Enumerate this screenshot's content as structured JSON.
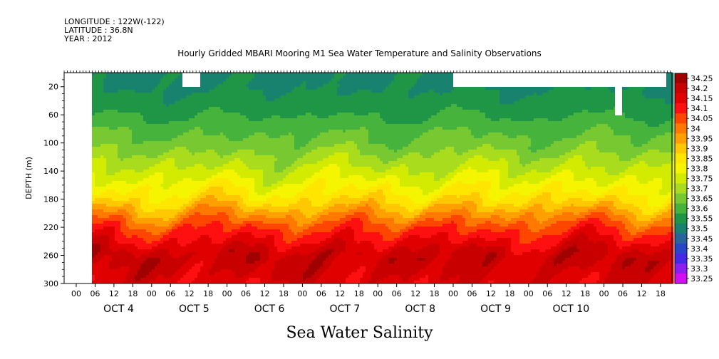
{
  "header": {
    "longitude": "LONGITUDE : 122W(-122)",
    "latitude": "LATITUDE : 36.8N",
    "year": "YEAR : 2012"
  },
  "chart_data": {
    "type": "heatmap",
    "title": "Hourly Gridded MBARI Mooring M1 Sea Water Temperature and Salinity Observations",
    "xlabel": "Sea Water Salinity",
    "ylabel": "DEPTH (m)",
    "ylim": [
      300,
      0
    ],
    "y_ticks": [
      20,
      60,
      100,
      140,
      180,
      220,
      260,
      300
    ],
    "x_hour_ticks": [
      "00",
      "06",
      "12",
      "18",
      "00",
      "06",
      "12",
      "18",
      "00",
      "06",
      "12",
      "18",
      "00",
      "06",
      "12",
      "18",
      "00",
      "06",
      "12",
      "18",
      "00",
      "06",
      "12",
      "18",
      "00",
      "06",
      "12",
      "18",
      "00",
      "06",
      "12",
      "18"
    ],
    "x_day_labels": [
      "OCT 4",
      "OCT 5",
      "OCT 6",
      "OCT 7",
      "OCT 8",
      "OCT 9",
      "OCT 10"
    ],
    "colorbar_levels": [
      "34.25",
      "34.2",
      "34.15",
      "34.1",
      "34.05",
      "34",
      "33.95",
      "33.9",
      "33.85",
      "33.8",
      "33.75",
      "33.7",
      "33.65",
      "33.6",
      "33.55",
      "33.5",
      "33.45",
      "33.4",
      "33.35",
      "33.3",
      "33.25"
    ],
    "colorbar_colors": [
      "#a00000",
      "#c80000",
      "#e00000",
      "#ff1010",
      "#ff4600",
      "#ff7800",
      "#ffa000",
      "#ffc800",
      "#ffe600",
      "#f5f500",
      "#d2eb00",
      "#aadc1e",
      "#78c832",
      "#46b43c",
      "#1e9646",
      "#18826e",
      "#28649b",
      "#2846c8",
      "#4628e6",
      "#8c1ef0",
      "#d20ff0"
    ],
    "depth_profile": [
      {
        "depth": 20,
        "salinity": 33.52
      },
      {
        "depth": 40,
        "salinity": 33.54
      },
      {
        "depth": 60,
        "salinity": 33.57
      },
      {
        "depth": 80,
        "salinity": 33.61
      },
      {
        "depth": 100,
        "salinity": 33.64
      },
      {
        "depth": 120,
        "salinity": 33.69
      },
      {
        "depth": 140,
        "salinity": 33.74
      },
      {
        "depth": 160,
        "salinity": 33.8
      },
      {
        "depth": 180,
        "salinity": 33.86
      },
      {
        "depth": 200,
        "salinity": 33.96
      },
      {
        "depth": 220,
        "salinity": 34.06
      },
      {
        "depth": 240,
        "salinity": 34.13
      },
      {
        "depth": 260,
        "salinity": 34.2
      },
      {
        "depth": 280,
        "salinity": 34.18
      },
      {
        "depth": 300,
        "salinity": 34.15
      }
    ],
    "grid": false
  }
}
